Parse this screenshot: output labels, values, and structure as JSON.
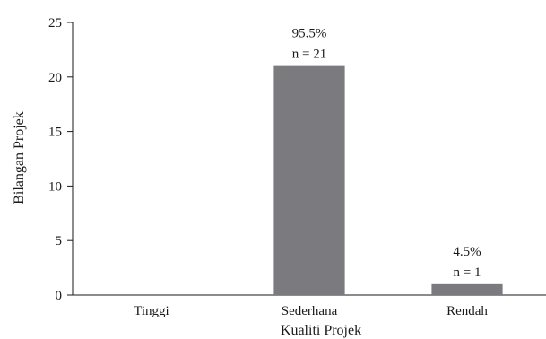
{
  "chart_data": {
    "type": "bar",
    "categories": [
      "Tinggi",
      "Sederhana",
      "Rendah"
    ],
    "values": [
      0,
      21,
      1
    ],
    "data_labels": [
      null,
      {
        "percent": "95.5%",
        "count": "n = 21"
      },
      {
        "percent": "4.5%",
        "count": "n = 1"
      }
    ],
    "xlabel": "Kualiti Projek",
    "ylabel": "Bilangan Projek",
    "ylim": [
      0,
      25
    ],
    "yticks": [
      0,
      5,
      10,
      15,
      20,
      25
    ],
    "grid": false,
    "legend": "none",
    "colors": {
      "bar": "#7b7b7f",
      "axis": "#1a1a1a"
    }
  }
}
